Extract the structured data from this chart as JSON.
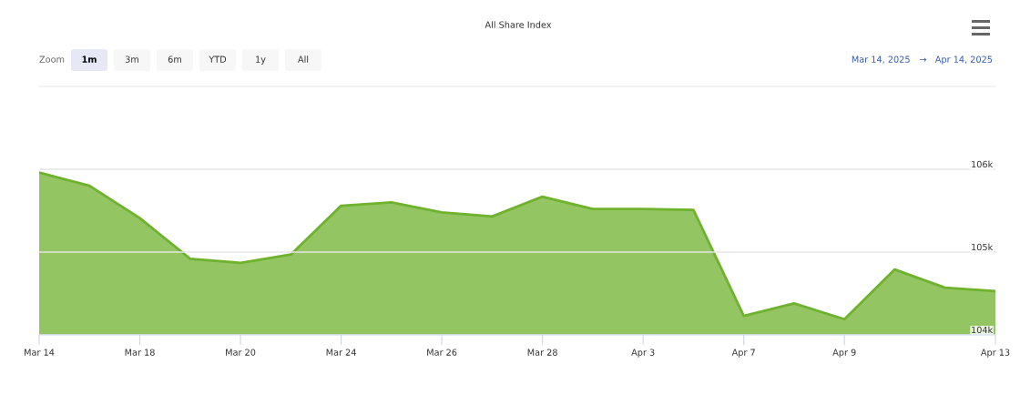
{
  "chart_data": {
    "type": "area",
    "title": "All Share Index",
    "categories": [
      "Mar 14",
      null,
      "Mar 18",
      null,
      "Mar 20",
      null,
      "Mar 24",
      null,
      "Mar 26",
      null,
      "Mar 28",
      null,
      "Apr 3",
      null,
      "Apr 7",
      null,
      "Apr 9",
      null,
      null,
      "Apr 13"
    ],
    "series": [
      {
        "color": "#6fb22d",
        "values": [
          105960,
          105800,
          105410,
          104920,
          104870,
          104970,
          105560,
          105600,
          105480,
          105430,
          105670,
          105520,
          105520,
          105510,
          104230,
          104380,
          104190,
          104790,
          104570,
          104530
        ]
      }
    ],
    "ylim": [
      104000,
      107000
    ],
    "yticks": [
      {
        "value": 104000,
        "label": "104k"
      },
      {
        "value": 105000,
        "label": "105k"
      },
      {
        "value": 106000,
        "label": "106k"
      }
    ],
    "grid": "y",
    "annotations": [
      "Zoom",
      "1m",
      "3m",
      "6m",
      "YTD",
      "1y",
      "All",
      "Mar 14, 2025",
      "→",
      "Apr 14, 2025"
    ]
  }
}
